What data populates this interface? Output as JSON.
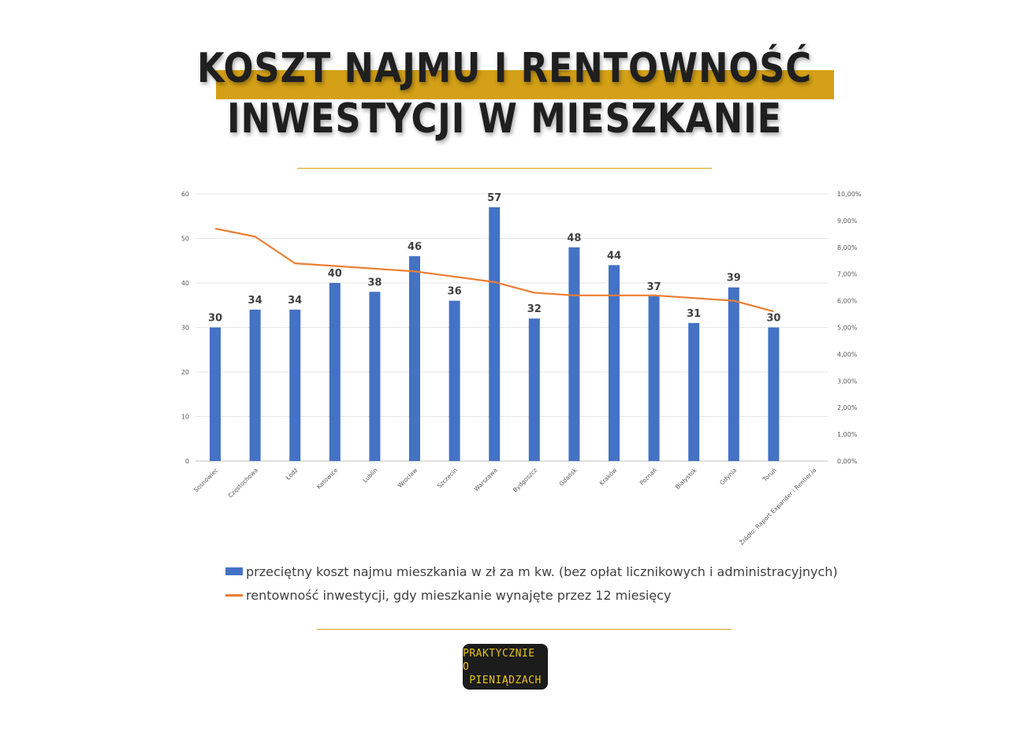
{
  "title": {
    "line1": "KOSZT NAJMU I RENTOWNOŚĆ",
    "line2": "INWESTYCJI W MIESZKANIE"
  },
  "colors": {
    "accent": "#d4a017",
    "bar": "#4472c4",
    "line": "#ed7d31",
    "title": "#1f1f1f",
    "logo_bg": "#1c1c1c",
    "logo_text": "#e8c21a"
  },
  "chart_data": {
    "type": "bar",
    "categories": [
      "Sosnowiec",
      "Częstochowa",
      "Łódź",
      "Katowice",
      "Lublin",
      "Wrocław",
      "Szczecin",
      "Warszawa",
      "Bydgoszcz",
      "Gdańsk",
      "Kraków",
      "Poznań",
      "Białystok",
      "Gdynia",
      "Toruń"
    ],
    "source_label": "Źródło: Raport Expander i Rentier.io",
    "series": [
      {
        "name": "przeciętny koszt najmu mieszkania w zł za m kw. (bez opłat licznikowych i administracyjnych)",
        "type": "bar",
        "axis": "left",
        "values": [
          30,
          34,
          34,
          40,
          38,
          46,
          36,
          57,
          32,
          48,
          44,
          37,
          31,
          39,
          30
        ],
        "labels": [
          "30",
          "34",
          "34",
          "40",
          "38",
          "46",
          "36",
          "57",
          "32",
          "48",
          "44",
          "37",
          "31",
          "39",
          "30"
        ]
      },
      {
        "name": "rentowność inwestycji, gdy mieszkanie wynajęte przez 12 miesięcy",
        "type": "line",
        "axis": "right",
        "values": [
          8.7,
          8.4,
          7.4,
          7.3,
          7.2,
          7.1,
          6.9,
          6.7,
          6.3,
          6.2,
          6.2,
          6.2,
          6.1,
          6.0,
          5.6
        ]
      }
    ],
    "y_left": {
      "min": 0,
      "max": 60,
      "ticks": [
        "0",
        "10",
        "20",
        "30",
        "40",
        "50",
        "60"
      ]
    },
    "y_right": {
      "min": 0,
      "max": 10,
      "ticks": [
        "0,00%",
        "1,00%",
        "2,00%",
        "3,00%",
        "4,00%",
        "5,00%",
        "6,00%",
        "7,00%",
        "8,00%",
        "9,00%",
        "10,00%"
      ]
    },
    "grid": true,
    "legend_position": "bottom"
  },
  "logo": {
    "line1": "PRAKTYCZNIE O",
    "line2": "PIENIĄDZACH"
  }
}
